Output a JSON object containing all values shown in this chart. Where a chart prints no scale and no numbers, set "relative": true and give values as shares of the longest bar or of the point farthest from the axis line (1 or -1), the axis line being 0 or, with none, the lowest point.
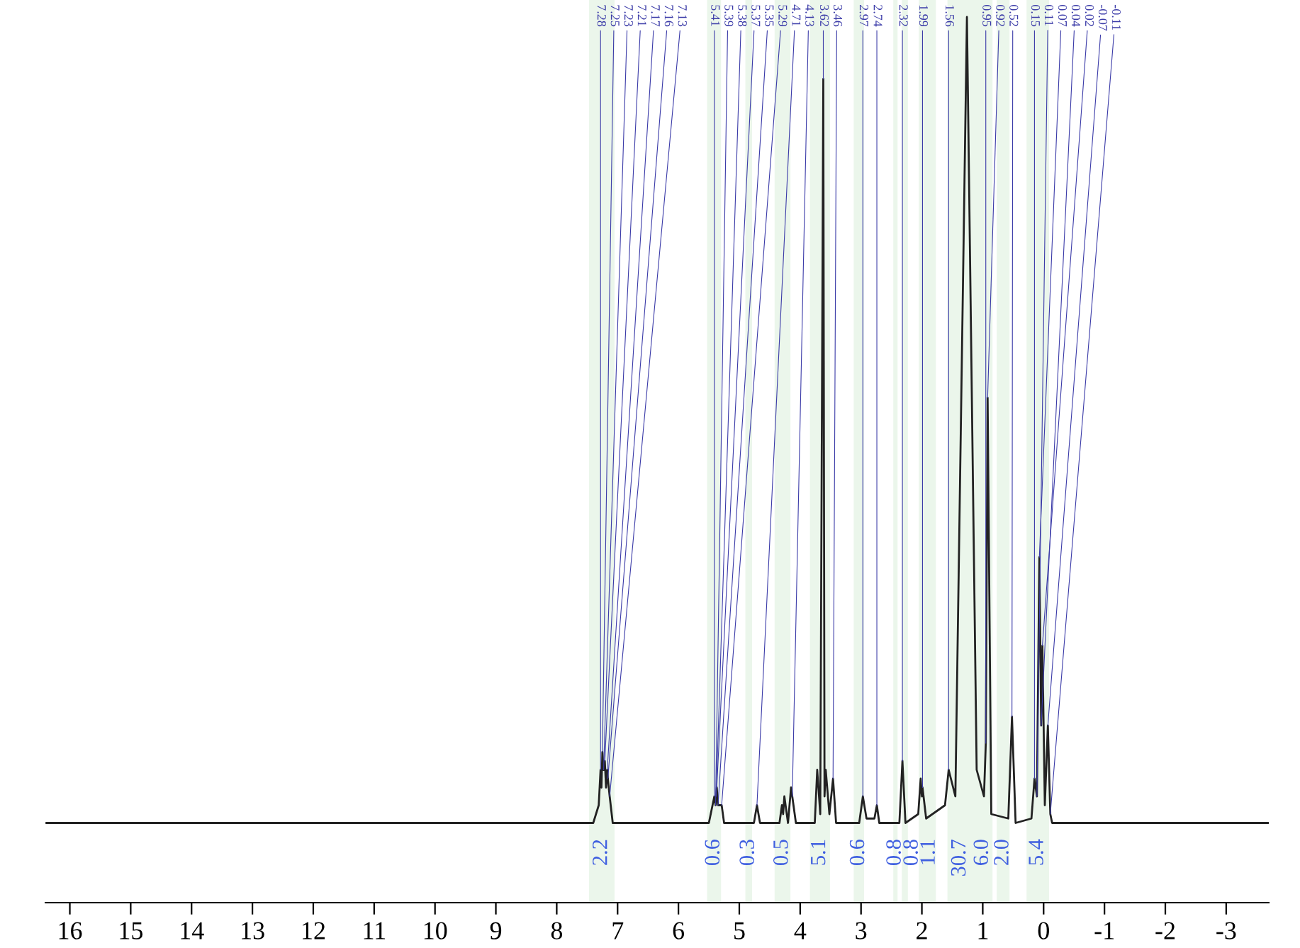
{
  "chart_data": {
    "type": "line",
    "relative": true,
    "xlim": [
      16.4,
      -3.7
    ],
    "xticks": [
      16,
      15,
      14,
      13,
      12,
      11,
      10,
      9,
      8,
      7,
      6,
      5,
      4,
      3,
      2,
      1,
      0,
      -1,
      -2,
      -3
    ],
    "tick_labels": "x",
    "grid": false,
    "series": [
      {
        "color": "#222222",
        "x": [
          16.4,
          7.4,
          7.31,
          7.28,
          7.265,
          7.25,
          7.23,
          7.21,
          7.19,
          7.17,
          7.16,
          7.13,
          7.08,
          5.5,
          5.44,
          5.41,
          5.39,
          5.38,
          5.37,
          5.35,
          5.29,
          5.25,
          4.76,
          4.71,
          4.66,
          4.34,
          4.3,
          4.28,
          4.26,
          4.2,
          4.15,
          4.13,
          4.07,
          3.76,
          3.72,
          3.67,
          3.62,
          3.6,
          3.58,
          3.52,
          3.46,
          3.41,
          3.03,
          2.97,
          2.91,
          2.78,
          2.74,
          2.7,
          2.37,
          2.32,
          2.27,
          2.06,
          2.02,
          2.0,
          1.99,
          1.93,
          1.62,
          1.56,
          1.45,
          1.26,
          1.1,
          0.98,
          0.95,
          0.92,
          0.86,
          0.58,
          0.52,
          0.46,
          0.2,
          0.15,
          0.11,
          0.07,
          0.04,
          0.02,
          -0.02,
          -0.07,
          -0.11,
          -0.14,
          -3.7
        ],
        "values": [
          0.09,
          0.09,
          0.11,
          0.15,
          0.13,
          0.17,
          0.15,
          0.16,
          0.13,
          0.15,
          0.14,
          0.12,
          0.09,
          0.09,
          0.11,
          0.12,
          0.11,
          0.12,
          0.13,
          0.11,
          0.11,
          0.09,
          0.09,
          0.11,
          0.09,
          0.09,
          0.11,
          0.1,
          0.12,
          0.09,
          0.13,
          0.12,
          0.09,
          0.09,
          0.15,
          0.1,
          0.93,
          0.12,
          0.15,
          0.1,
          0.14,
          0.09,
          0.09,
          0.12,
          0.095,
          0.095,
          0.11,
          0.09,
          0.09,
          0.16,
          0.09,
          0.1,
          0.14,
          0.12,
          0.13,
          0.095,
          0.11,
          0.15,
          0.12,
          1.0,
          0.15,
          0.12,
          0.18,
          0.57,
          0.1,
          0.095,
          0.21,
          0.09,
          0.095,
          0.14,
          0.12,
          0.39,
          0.2,
          0.29,
          0.11,
          0.2,
          0.1,
          0.09,
          0.09
        ]
      }
    ],
    "bands": [
      {
        "axis": "x",
        "from": 7.47,
        "to": 7.05,
        "label": "2.2",
        "color": "#5cb85c"
      },
      {
        "axis": "x",
        "from": 5.53,
        "to": 5.3,
        "label": "0.6",
        "color": "#5cb85c"
      },
      {
        "axis": "x",
        "from": 4.9,
        "to": 4.79,
        "label": "0.3",
        "color": "#5cb85c"
      },
      {
        "axis": "x",
        "from": 4.42,
        "to": 4.16,
        "label": "0.5",
        "color": "#5cb85c"
      },
      {
        "axis": "x",
        "from": 3.84,
        "to": 3.51,
        "label": "5.1",
        "color": "#5cb85c"
      },
      {
        "axis": "x",
        "from": 3.12,
        "to": 2.95,
        "label": "0.6",
        "color": "#5cb85c"
      },
      {
        "axis": "x",
        "from": 2.47,
        "to": 2.4,
        "label": "0.8",
        "color": "#5cb85c"
      },
      {
        "axis": "x",
        "from": 2.33,
        "to": 2.23,
        "label": "0.8",
        "color": "#5cb85c"
      },
      {
        "axis": "x",
        "from": 2.05,
        "to": 1.77,
        "label": "1.1",
        "color": "#5cb85c"
      },
      {
        "axis": "x",
        "from": 1.58,
        "to": 1.16,
        "label": "30.7",
        "color": "#5cb85c"
      },
      {
        "axis": "x",
        "from": 1.16,
        "to": 0.84,
        "label": "6.0",
        "color": "#5cb85c"
      },
      {
        "axis": "x",
        "from": 0.77,
        "to": 0.56,
        "label": "2.0",
        "color": "#5cb85c"
      },
      {
        "axis": "x",
        "from": 0.28,
        "to": -0.09,
        "label": "5.4",
        "color": "#5cb85c"
      }
    ],
    "annotations": [
      {
        "text": "7.28",
        "x": 7.28,
        "y": 0.15
      },
      {
        "text": "7.25",
        "x": 7.25,
        "y": 0.17
      },
      {
        "text": "7.23",
        "x": 7.23,
        "y": 0.15
      },
      {
        "text": "7.21",
        "x": 7.21,
        "y": 0.16
      },
      {
        "text": "7.17",
        "x": 7.17,
        "y": 0.15
      },
      {
        "text": "7.16",
        "x": 7.16,
        "y": 0.14
      },
      {
        "text": "7.13",
        "x": 7.13,
        "y": 0.12
      },
      {
        "text": "5.41",
        "x": 5.41,
        "y": 0.12
      },
      {
        "text": "5.39",
        "x": 5.39,
        "y": 0.11
      },
      {
        "text": "5.38",
        "x": 5.38,
        "y": 0.12
      },
      {
        "text": "5.37",
        "x": 5.37,
        "y": 0.13
      },
      {
        "text": "5.35",
        "x": 5.35,
        "y": 0.11
      },
      {
        "text": "5.29",
        "x": 5.29,
        "y": 0.11
      },
      {
        "text": "4.71",
        "x": 4.71,
        "y": 0.11
      },
      {
        "text": "4.13",
        "x": 4.13,
        "y": 0.12
      },
      {
        "text": "3.62",
        "x": 3.62,
        "y": 0.93
      },
      {
        "text": "3.46",
        "x": 3.46,
        "y": 0.14
      },
      {
        "text": "2.97",
        "x": 2.97,
        "y": 0.12
      },
      {
        "text": "2.74",
        "x": 2.74,
        "y": 0.11
      },
      {
        "text": "2.32",
        "x": 2.32,
        "y": 0.16
      },
      {
        "text": "1.99",
        "x": 1.99,
        "y": 0.13
      },
      {
        "text": "1.56",
        "x": 1.56,
        "y": 0.15
      },
      {
        "text": "0.95",
        "x": 0.95,
        "y": 0.18
      },
      {
        "text": "0.92",
        "x": 0.92,
        "y": 0.57
      },
      {
        "text": "0.52",
        "x": 0.52,
        "y": 0.21
      },
      {
        "text": "0.15",
        "x": 0.15,
        "y": 0.14
      },
      {
        "text": "0.11",
        "x": 0.11,
        "y": 0.12
      },
      {
        "text": "0.07",
        "x": 0.07,
        "y": 0.39
      },
      {
        "text": "0.04",
        "x": 0.04,
        "y": 0.2
      },
      {
        "text": "0.02",
        "x": 0.02,
        "y": 0.29
      },
      {
        "text": "-0.07",
        "x": -0.07,
        "y": 0.2
      },
      {
        "text": "-0.11",
        "x": -0.11,
        "y": 0.1
      }
    ]
  }
}
